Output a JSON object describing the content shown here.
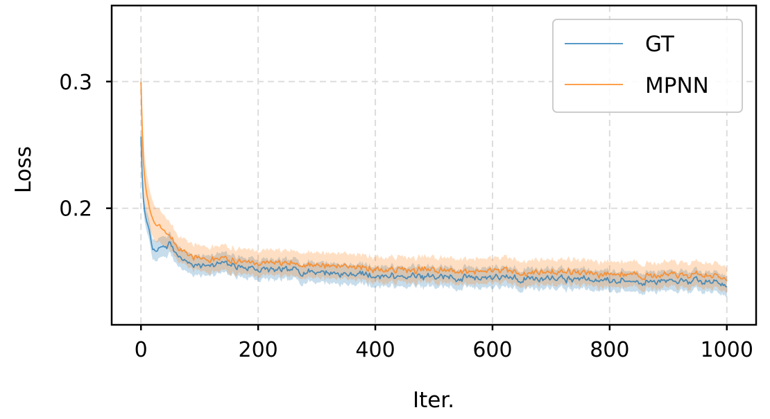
{
  "chart_data": {
    "type": "line",
    "xlabel": "Iter.",
    "ylabel": "Loss",
    "xlim": [
      -50,
      1050
    ],
    "ylim": [
      0.108,
      0.36
    ],
    "xticks": [
      0,
      200,
      400,
      600,
      800,
      1000
    ],
    "yticks": [
      0.2,
      0.3
    ],
    "xtick_labels": [
      "0",
      "200",
      "400",
      "600",
      "800",
      "1000"
    ],
    "ytick_labels": [
      "0.2",
      "0.3"
    ],
    "grid": true,
    "legend_position": "top-right",
    "series": [
      {
        "name": "GT",
        "color": "#1f77b4",
        "x": [
          0,
          3,
          6,
          10,
          15,
          20,
          30,
          40,
          50,
          60,
          70,
          80,
          100,
          125,
          150,
          175,
          200,
          250,
          300,
          350,
          400,
          450,
          500,
          550,
          600,
          650,
          700,
          750,
          800,
          850,
          900,
          950,
          1000
        ],
        "y": [
          0.257,
          0.212,
          0.198,
          0.189,
          0.182,
          0.165,
          0.168,
          0.17,
          0.172,
          0.165,
          0.16,
          0.158,
          0.155,
          0.156,
          0.155,
          0.153,
          0.152,
          0.151,
          0.15,
          0.148,
          0.147,
          0.146,
          0.146,
          0.145,
          0.146,
          0.144,
          0.145,
          0.144,
          0.143,
          0.143,
          0.142,
          0.142,
          0.141
        ],
        "band": [
          0.008,
          0.008,
          0.008,
          0.008,
          0.008,
          0.008,
          0.008,
          0.008,
          0.008,
          0.008,
          0.008,
          0.008,
          0.008,
          0.008,
          0.008,
          0.008,
          0.008,
          0.008,
          0.008,
          0.008,
          0.008,
          0.008,
          0.008,
          0.008,
          0.008,
          0.008,
          0.008,
          0.008,
          0.008,
          0.008,
          0.008,
          0.008,
          0.008
        ]
      },
      {
        "name": "MPNN",
        "color": "#ff7f0e",
        "x": [
          0,
          3,
          6,
          10,
          15,
          20,
          30,
          40,
          50,
          60,
          70,
          80,
          100,
          125,
          150,
          175,
          200,
          250,
          300,
          350,
          400,
          450,
          500,
          550,
          600,
          650,
          700,
          750,
          800,
          850,
          900,
          950,
          1000
        ],
        "y": [
          0.3,
          0.245,
          0.225,
          0.21,
          0.2,
          0.19,
          0.185,
          0.182,
          0.178,
          0.172,
          0.166,
          0.163,
          0.16,
          0.16,
          0.159,
          0.158,
          0.157,
          0.156,
          0.155,
          0.154,
          0.152,
          0.151,
          0.151,
          0.15,
          0.151,
          0.149,
          0.15,
          0.149,
          0.148,
          0.148,
          0.147,
          0.147,
          0.146
        ],
        "band": [
          0.025,
          0.02,
          0.018,
          0.016,
          0.015,
          0.014,
          0.013,
          0.012,
          0.011,
          0.01,
          0.01,
          0.01,
          0.01,
          0.01,
          0.01,
          0.01,
          0.01,
          0.01,
          0.01,
          0.01,
          0.01,
          0.01,
          0.01,
          0.01,
          0.01,
          0.01,
          0.01,
          0.01,
          0.01,
          0.01,
          0.01,
          0.01,
          0.01
        ]
      }
    ]
  }
}
